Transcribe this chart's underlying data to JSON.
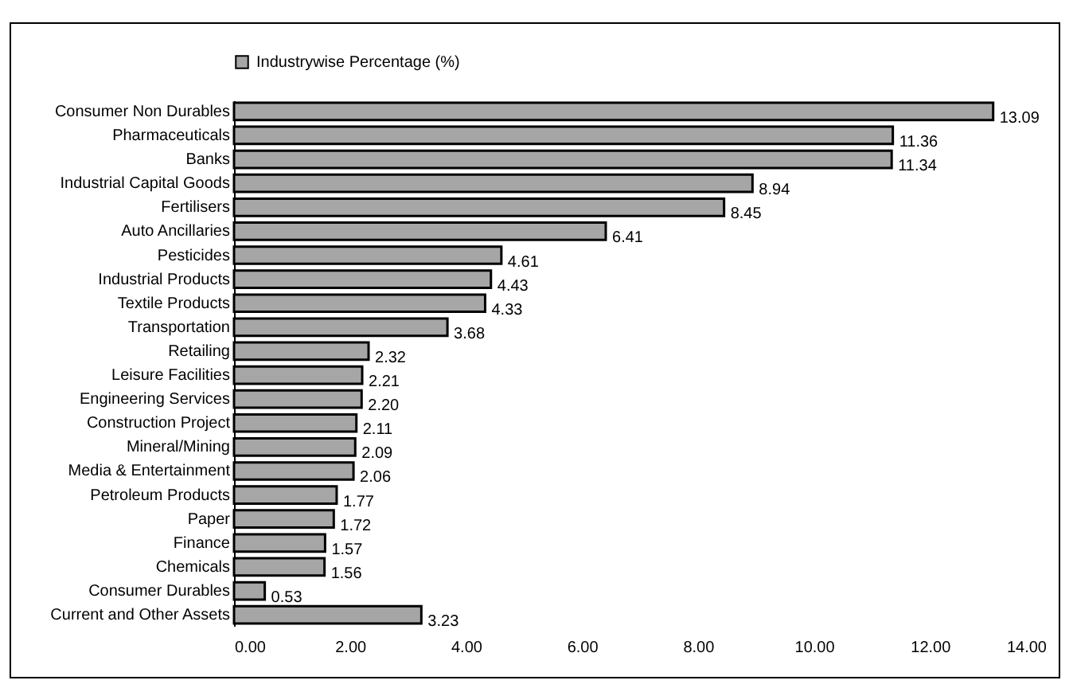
{
  "chart_data": {
    "type": "bar",
    "orientation": "horizontal",
    "categories": [
      "Consumer Non Durables",
      "Pharmaceuticals",
      "Banks",
      "Industrial Capital Goods",
      "Fertilisers",
      "Auto Ancillaries",
      "Pesticides",
      "Industrial Products",
      "Textile Products",
      "Transportation",
      "Retailing",
      "Leisure Facilities",
      "Engineering Services",
      "Construction Project",
      "Mineral/Mining",
      "Media & Entertainment",
      "Petroleum Products",
      "Paper",
      "Finance",
      "Chemicals",
      "Consumer Durables",
      "Current and Other Assets"
    ],
    "series": [
      {
        "name": "Industrywise Percentage (%)",
        "color": "#a6a6a6",
        "values": [
          13.09,
          11.36,
          11.34,
          8.94,
          8.45,
          6.41,
          4.61,
          4.43,
          4.33,
          3.68,
          2.32,
          2.21,
          2.2,
          2.11,
          2.09,
          2.06,
          1.77,
          1.72,
          1.57,
          1.56,
          0.53,
          3.23
        ],
        "value_labels": [
          "13.09",
          "11.36",
          "11.34",
          "8.94",
          "8.45",
          "6.41",
          "4.61",
          "4.43",
          "4.33",
          "3.68",
          "2.32",
          "2.21",
          "2.20",
          "2.11",
          "2.09",
          "2.06",
          "1.77",
          "1.72",
          "1.57",
          "1.56",
          "0.53",
          "3.23"
        ]
      }
    ],
    "xlim": [
      0,
      14
    ],
    "xticks": [
      {
        "value": 0,
        "label": "0.00"
      },
      {
        "value": 2,
        "label": "2.00"
      },
      {
        "value": 4,
        "label": "4.00"
      },
      {
        "value": 6,
        "label": "6.00"
      },
      {
        "value": 8,
        "label": "8.00"
      },
      {
        "value": 10,
        "label": "10.00"
      },
      {
        "value": 12,
        "label": "12.00"
      },
      {
        "value": 14,
        "label": "14.00"
      }
    ],
    "legend": "top",
    "grid": false
  }
}
